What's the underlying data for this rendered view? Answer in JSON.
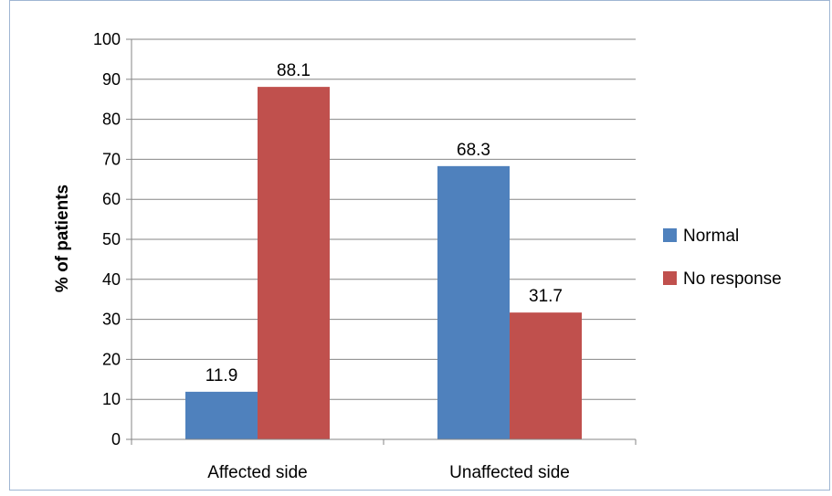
{
  "chart_data": {
    "type": "bar",
    "title": "",
    "xlabel": "",
    "ylabel": "% of patients",
    "ylim": [
      0,
      100
    ],
    "yticks": [
      0,
      10,
      20,
      30,
      40,
      50,
      60,
      70,
      80,
      90,
      100
    ],
    "grid": true,
    "legend_position": "right",
    "categories": [
      "Affected side",
      "Unaffected side"
    ],
    "series": [
      {
        "name": "Normal",
        "color": "#4f81bd",
        "values": [
          11.9,
          68.3
        ]
      },
      {
        "name": "No response",
        "color": "#c0504d",
        "values": [
          88.1,
          31.7
        ]
      }
    ]
  }
}
